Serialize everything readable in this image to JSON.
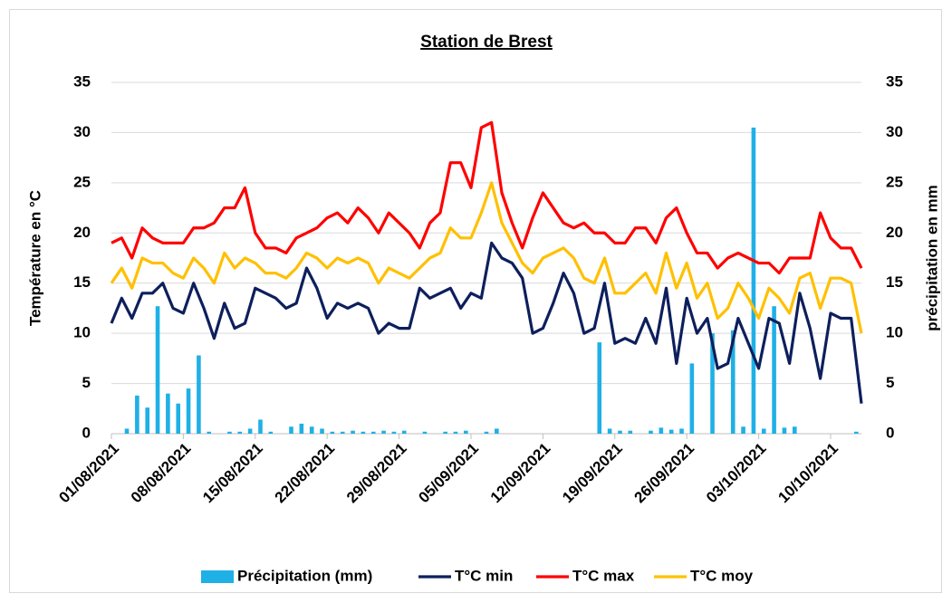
{
  "chart_data": {
    "type": "combo",
    "title": "Station de Brest",
    "ylabel": "Température en °C",
    "y2label": "précipitation en mm",
    "categories": [
      "01/08/2021",
      null,
      null,
      null,
      null,
      null,
      null,
      "08/08/2021",
      null,
      null,
      null,
      null,
      null,
      null,
      "15/08/2021",
      null,
      null,
      null,
      null,
      null,
      null,
      "22/08/2021",
      null,
      null,
      null,
      null,
      null,
      null,
      "29/08/2021",
      null,
      null,
      null,
      null,
      null,
      null,
      "05/09/2021",
      null,
      null,
      null,
      null,
      null,
      null,
      "12/09/2021",
      null,
      null,
      null,
      null,
      null,
      null,
      "19/09/2021",
      null,
      null,
      null,
      null,
      null,
      null,
      "26/09/2021",
      null,
      null,
      null,
      null,
      null,
      null,
      "03/10/2021",
      null,
      null,
      null,
      null,
      null,
      null,
      "10/10/2021",
      null,
      null,
      null
    ],
    "ylim": [
      0,
      35
    ],
    "yticks": [
      0,
      5,
      10,
      15,
      20,
      25,
      30,
      35
    ],
    "y2lim": [
      0,
      35
    ],
    "y2ticks": [
      0,
      5,
      10,
      15,
      20,
      25,
      30,
      35
    ],
    "grid": true,
    "legend": "bottom",
    "series": [
      {
        "name": "Précipitation (mm)",
        "type": "bar",
        "axis": "y2",
        "color": "#1fb0e6",
        "values": [
          0,
          0.5,
          3.8,
          2.6,
          12.7,
          4,
          3,
          4.5,
          7.8,
          0.2,
          0,
          0.2,
          0.2,
          0.5,
          1.4,
          0.2,
          0,
          0.7,
          1,
          0.7,
          0.5,
          0.2,
          0.2,
          0.3,
          0.2,
          0.2,
          0.3,
          0.2,
          0.3,
          0,
          0.2,
          0,
          0.2,
          0.2,
          0.3,
          0,
          0.2,
          0.5,
          0,
          0,
          0,
          0,
          0,
          0,
          0,
          0,
          0,
          9.1,
          0.5,
          0.3,
          0.3,
          0,
          0.3,
          0.6,
          0.4,
          0.5,
          7,
          0,
          10,
          0,
          10.3,
          0.7,
          30.5,
          0.5,
          12.7,
          0.6,
          0.7,
          0,
          0,
          0,
          0,
          0,
          0.2,
          0
        ]
      },
      {
        "name": "T°C min",
        "type": "line",
        "color": "#0d1f5c",
        "values": [
          11,
          13.5,
          11.5,
          14,
          14,
          15,
          12.5,
          12,
          15,
          12.5,
          9.5,
          13,
          10.5,
          11,
          14.5,
          14,
          13.5,
          12.5,
          13,
          16.5,
          14.5,
          11.5,
          13,
          12.5,
          13,
          12.5,
          10,
          11,
          10.5,
          10.5,
          14.5,
          13.5,
          14,
          14.5,
          12.5,
          14,
          13.5,
          19,
          17.5,
          17,
          15.5,
          10,
          10.5,
          13,
          16,
          14,
          10,
          10.5,
          15,
          9,
          9.5,
          9,
          11.5,
          9,
          14.5,
          7,
          13.5,
          10,
          11.5,
          6.5,
          7,
          11.5,
          9,
          6.5,
          11.5,
          11,
          7,
          14,
          10.5,
          5.5,
          12,
          11.5,
          11.5,
          3
        ]
      },
      {
        "name": "T°C max",
        "type": "line",
        "color": "#ff0000",
        "values": [
          19,
          19.5,
          17.5,
          20.5,
          19.5,
          19,
          19,
          19,
          20.5,
          20.5,
          21,
          22.5,
          22.5,
          24.5,
          20,
          18.5,
          18.5,
          18,
          19.5,
          20,
          20.5,
          21.5,
          22,
          21,
          22.5,
          21.5,
          20,
          22,
          21,
          20,
          18.5,
          21,
          22,
          27,
          27,
          24.5,
          30.5,
          31,
          24,
          21,
          18.5,
          21.5,
          24,
          22.5,
          21,
          20.5,
          21,
          20,
          20,
          19,
          19,
          20.5,
          20.5,
          19,
          21.5,
          22.5,
          20,
          18,
          18,
          16.5,
          17.5,
          18,
          17.5,
          17,
          17,
          16,
          17.5,
          17.5,
          17.5,
          22,
          19.5,
          18.5,
          18.5,
          16.5
        ]
      },
      {
        "name": "T°C moy",
        "type": "line",
        "color": "#ffc000",
        "values": [
          15,
          16.5,
          14.5,
          17.5,
          17,
          17,
          16,
          15.5,
          17.5,
          16.5,
          15,
          18,
          16.5,
          17.5,
          17,
          16,
          16,
          15.5,
          16.5,
          18,
          17.5,
          16.5,
          17.5,
          17,
          17.5,
          17,
          15,
          16.5,
          16,
          15.5,
          16.5,
          17.5,
          18,
          20.5,
          19.5,
          19.5,
          22,
          25,
          21,
          19,
          17,
          16,
          17.5,
          18,
          18.5,
          17.5,
          15.5,
          15,
          17.5,
          14,
          14,
          15,
          16,
          14,
          18,
          14.5,
          17,
          13.5,
          15,
          11.5,
          12.5,
          15,
          13.5,
          11.5,
          14.5,
          13.5,
          12,
          15.5,
          16,
          12.5,
          15.5,
          15.5,
          15,
          10
        ]
      }
    ]
  }
}
